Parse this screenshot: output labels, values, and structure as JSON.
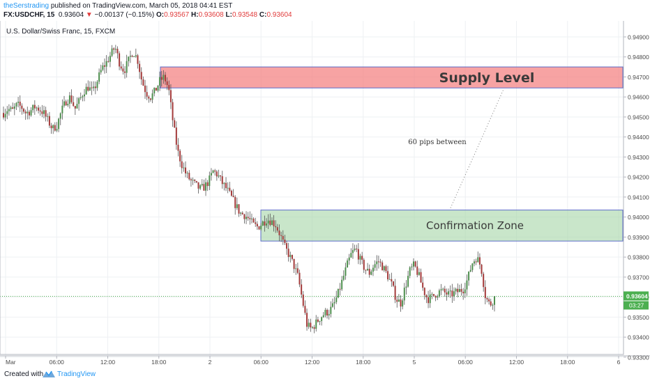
{
  "header": {
    "author": "theSerstrading",
    "published": " published on TradingView.com, March 05, 2018 04:41 EST",
    "symbol": "FX:USDCHF, 15",
    "last": "0.93604",
    "change": "−0.00137 (−0.15%)",
    "o_label": "O:",
    "o_value": "0.93567",
    "h_label": "H:",
    "h_value": "0.93608",
    "l_label": "L:",
    "l_value": "0.93548",
    "c_label": "C:",
    "c_value": "0.93604"
  },
  "chart_data": {
    "type": "candlestick",
    "title": "U.S. Dollar/Swiss Franc, 15, FXCM",
    "x_tick_labels": [
      "Mar",
      "06:00",
      "12:00",
      "18:00",
      "2",
      "06:00",
      "12:00",
      "18:00",
      "5",
      "06:00",
      "12:00",
      "18:00",
      "6"
    ],
    "y_tick_labels": [
      "0.94900",
      "0.94800",
      "0.94700",
      "0.94600",
      "0.94500",
      "0.94400",
      "0.94300",
      "0.94200",
      "0.94100",
      "0.94000",
      "0.93900",
      "0.93800",
      "0.93700",
      "0.93600",
      "0.93500",
      "0.93400",
      "0.93300"
    ],
    "ylim": [
      0.9331,
      0.9498
    ],
    "current_price": "0.93604",
    "countdown": "03:27",
    "grid": true,
    "zones": [
      {
        "label": "Supply Level",
        "top": 0.9475,
        "bottom": 0.94645,
        "color": "#f47c7c"
      },
      {
        "label": "Confirmation Zone",
        "top": 0.94035,
        "bottom": 0.9388,
        "color": "#a5d6a7"
      }
    ],
    "annotation": "60 pips between",
    "path_prices": [
      0.9452,
      0.9454,
      0.9453,
      0.9456,
      0.9455,
      0.9452,
      0.9453,
      0.9455,
      0.9454,
      0.9452,
      0.9448,
      0.9444,
      0.9446,
      0.9453,
      0.9458,
      0.946,
      0.9454,
      0.9458,
      0.9463,
      0.9465,
      0.9462,
      0.9468,
      0.9474,
      0.9477,
      0.9481,
      0.9485,
      0.9477,
      0.9473,
      0.9478,
      0.9483,
      0.9479,
      0.9468,
      0.9462,
      0.946,
      0.9463,
      0.9468,
      0.947,
      0.9464,
      0.9447,
      0.9433,
      0.9426,
      0.9421,
      0.9418,
      0.9416,
      0.9414,
      0.9415,
      0.9418,
      0.9423,
      0.9421,
      0.9417,
      0.9414,
      0.941,
      0.9406,
      0.9402,
      0.9401,
      0.9399,
      0.9396,
      0.9395,
      0.9397,
      0.9399,
      0.9398,
      0.9396,
      0.9391,
      0.9385,
      0.9381,
      0.9376,
      0.937,
      0.9358,
      0.9346,
      0.9344,
      0.9347,
      0.935,
      0.9352,
      0.9353,
      0.9356,
      0.9362,
      0.9369,
      0.9376,
      0.9382,
      0.9384,
      0.9378,
      0.9374,
      0.9372,
      0.9376,
      0.9378,
      0.9375,
      0.9371,
      0.9366,
      0.9359,
      0.9357,
      0.9365,
      0.9373,
      0.9376,
      0.9371,
      0.9364,
      0.9359,
      0.936,
      0.9362,
      0.9363,
      0.9362,
      0.9361,
      0.9362,
      0.9363,
      0.9364,
      0.9369,
      0.9377,
      0.938,
      0.9375,
      0.936,
      0.9356,
      0.936
    ]
  },
  "footer": {
    "created": "Created with",
    "brand": "TradingView"
  }
}
